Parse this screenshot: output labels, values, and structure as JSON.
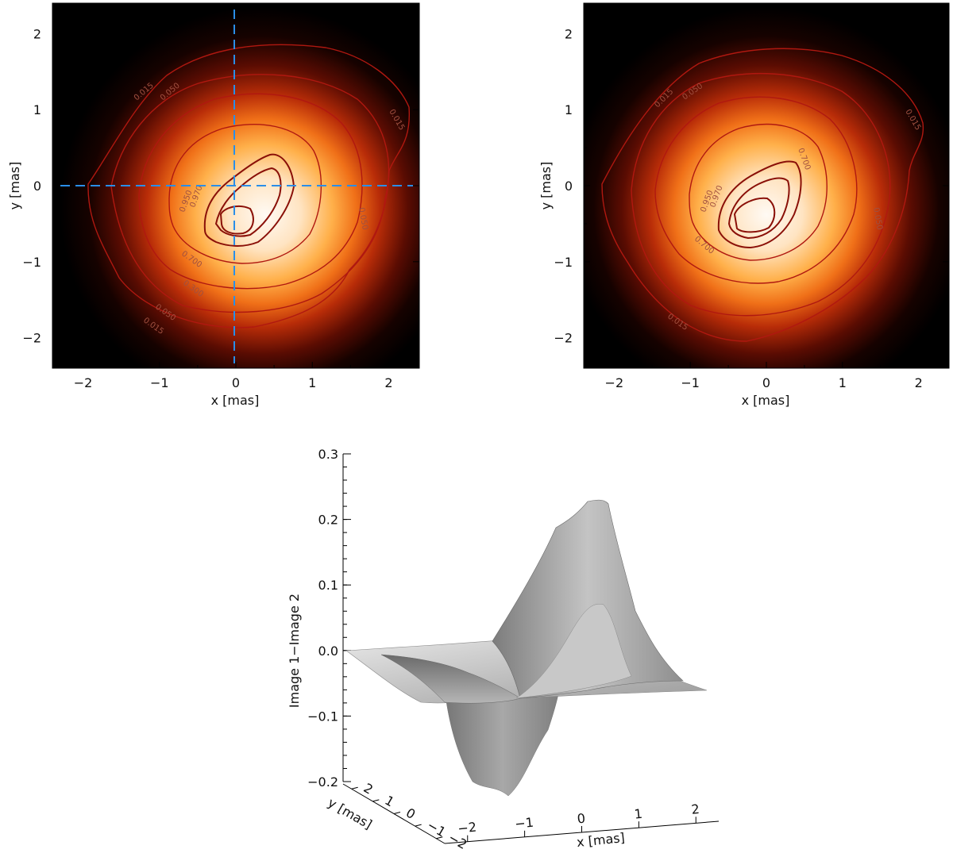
{
  "chart_data": [
    {
      "type": "heatmap",
      "panel": "top-left",
      "xlabel": "x [mas]",
      "ylabel": "y [mas]",
      "xlim": [
        -2.4,
        2.4
      ],
      "ylim": [
        -2.4,
        2.4
      ],
      "x_ticks": [
        "−2",
        "−1",
        "0",
        "1",
        "2"
      ],
      "y_ticks": [
        "−2",
        "−1",
        "0",
        "1",
        "2"
      ],
      "colormap": "black-red-orange-white",
      "contour_levels": [
        "0.015",
        "0.050",
        "0.300",
        "0.700",
        "0.950",
        "0.970"
      ],
      "peak_center": [
        0.2,
        -0.3
      ],
      "reference_lines": {
        "x": 0,
        "y": 0,
        "color": "#2a8ee8",
        "style": "dashed"
      },
      "grid": false
    },
    {
      "type": "heatmap",
      "panel": "top-right",
      "xlabel": "x [mas]",
      "ylabel": "y [mas]",
      "xlim": [
        -2.4,
        2.4
      ],
      "ylim": [
        -2.4,
        2.4
      ],
      "x_ticks": [
        "−2",
        "−1",
        "0",
        "1",
        "2"
      ],
      "y_ticks": [
        "−2",
        "−1",
        "0",
        "1",
        "2"
      ],
      "colormap": "black-red-orange-white",
      "contour_levels": [
        "0.015",
        "0.050",
        "0.300",
        "0.700",
        "0.950",
        "0.970"
      ],
      "peak_center": [
        -0.1,
        -0.3
      ],
      "grid": false
    },
    {
      "type": "surface",
      "panel": "bottom",
      "zlabel": "Image 1−Image 2",
      "xlabel": "x [mas]",
      "ylabel": "y [mas]",
      "zlim": [
        -0.2,
        0.3
      ],
      "z_ticks": [
        "−0.2",
        "−0.1",
        "0.0",
        "0.1",
        "0.2",
        "0.3"
      ],
      "x_ticks": [
        "−2",
        "−1",
        "0",
        "1",
        "2"
      ],
      "y_ticks": [
        "−2",
        "−1",
        "0",
        "1",
        "2"
      ],
      "z_max": 0.23,
      "z_min": -0.17,
      "shading": "gray"
    }
  ]
}
